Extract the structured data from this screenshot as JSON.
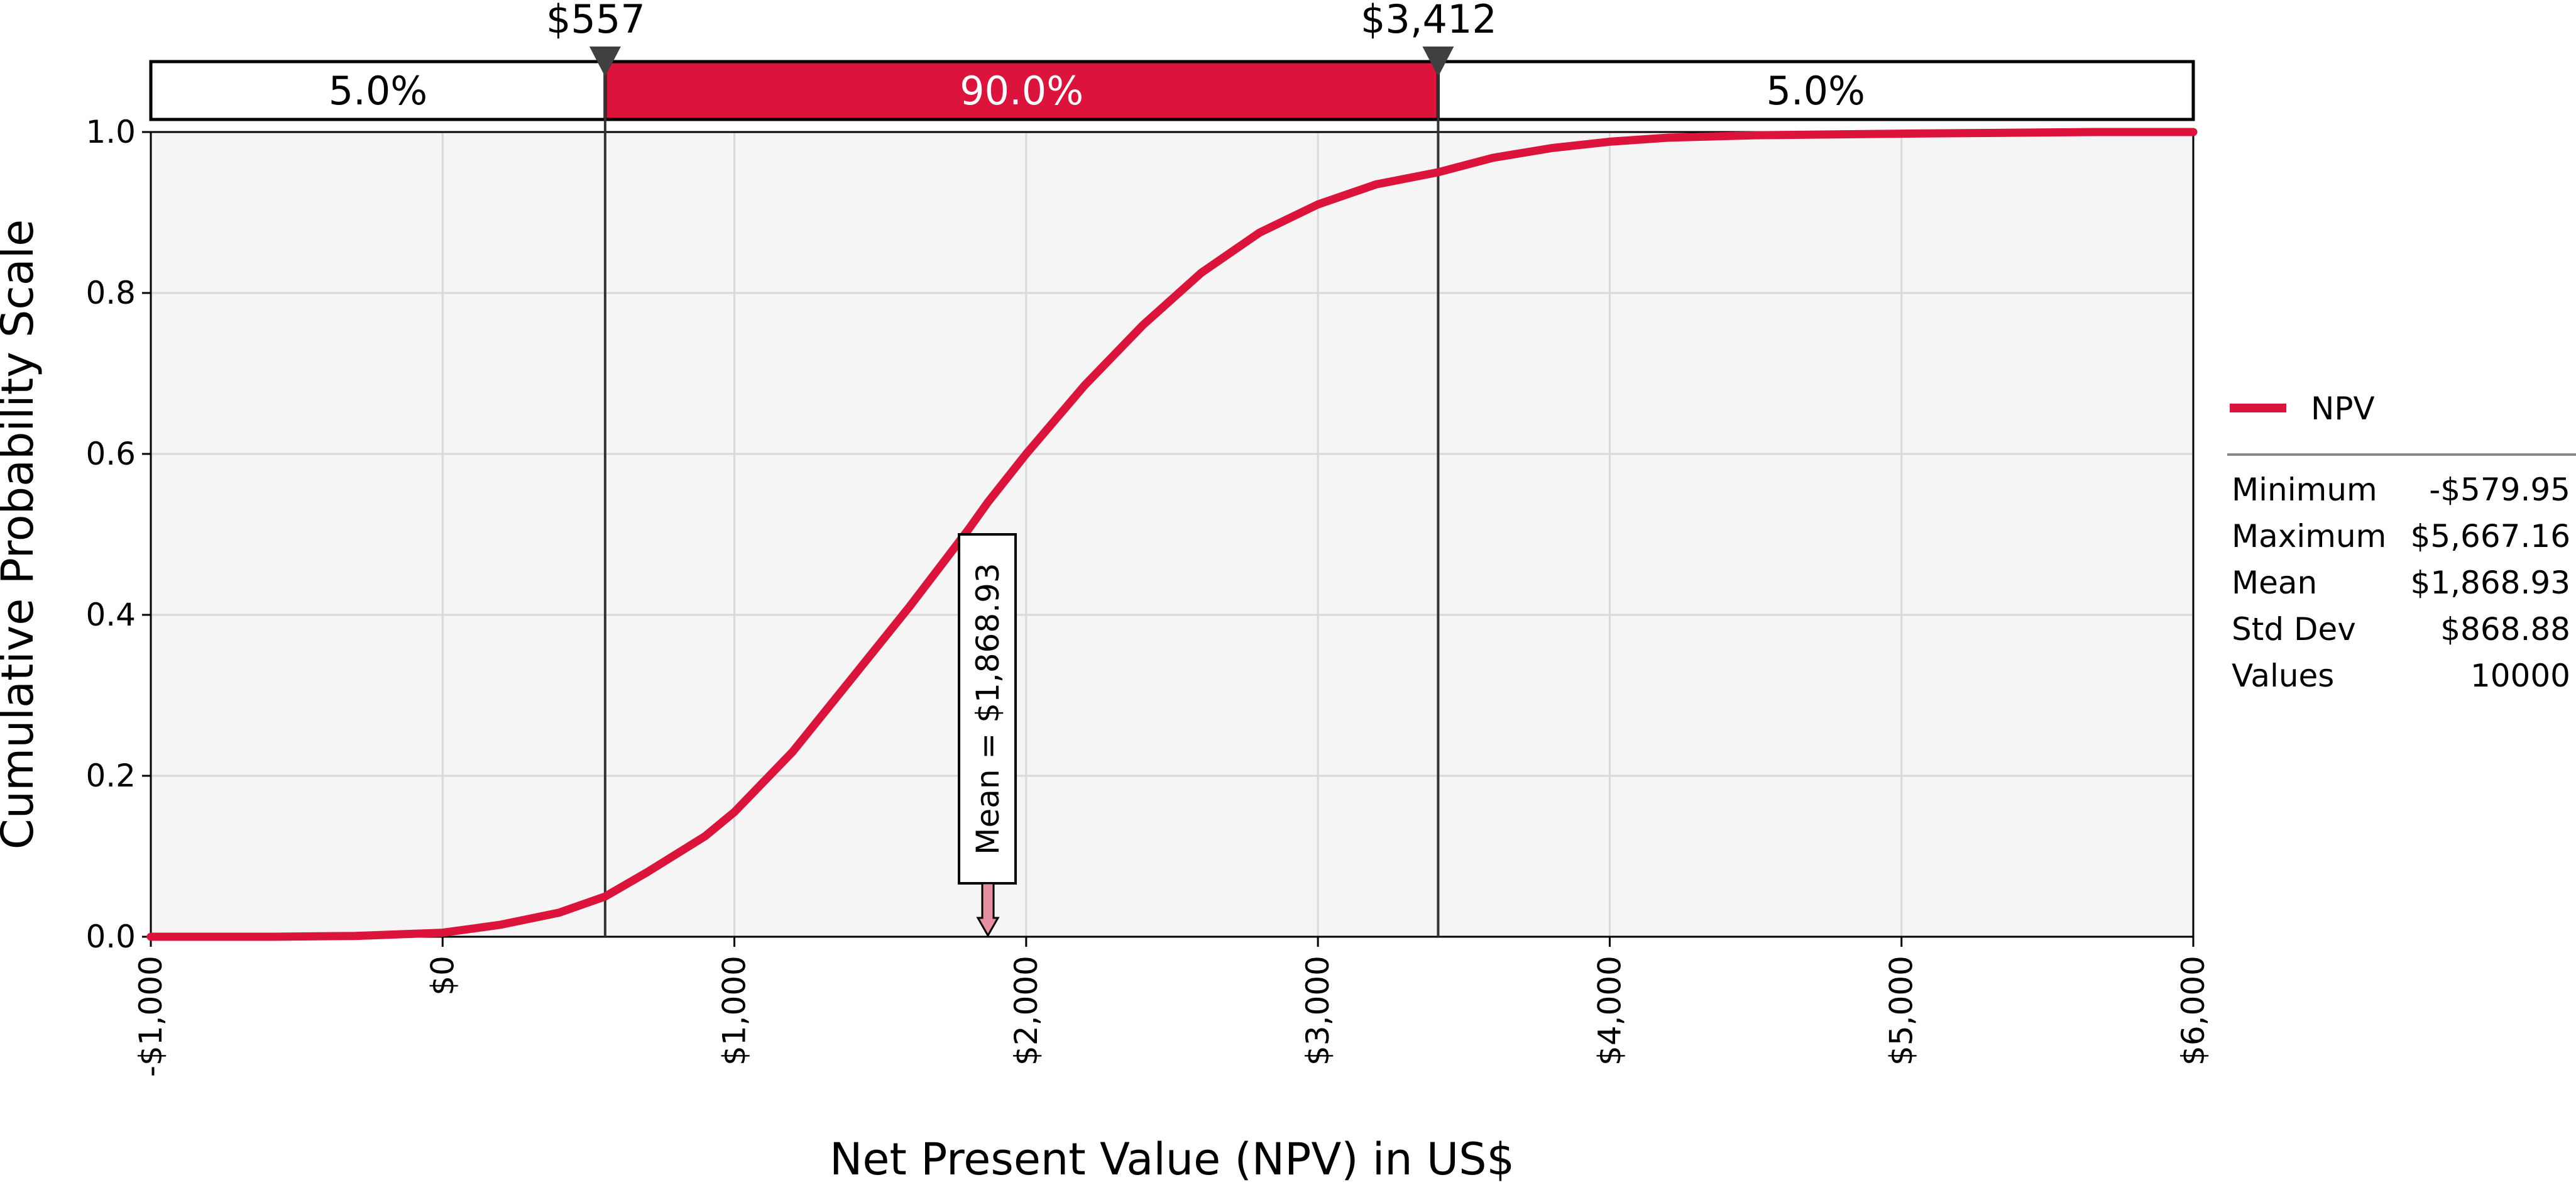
{
  "chart_data": {
    "type": "line",
    "chart_kind": "cumulative ascending",
    "title": "",
    "xlabel": "Net Present Value (NPV) in US$",
    "ylabel": "Cumulative Probability Scale",
    "xlim": [
      -1000,
      6000
    ],
    "ylim": [
      0,
      1
    ],
    "x_ticks": [
      -1000,
      0,
      1000,
      2000,
      3000,
      4000,
      5000,
      6000
    ],
    "x_tick_labels": [
      "-$1,000",
      "$0",
      "$1,000",
      "$2,000",
      "$3,000",
      "$4,000",
      "$5,000",
      "$6,000"
    ],
    "y_ticks": [
      0,
      0.2,
      0.4,
      0.6,
      0.8,
      1.0
    ],
    "y_tick_labels": [
      "0.0",
      "0.2",
      "0.4",
      "0.6",
      "0.8",
      "1.0"
    ],
    "grid": true,
    "series": [
      {
        "name": "NPV",
        "color": "#dc143c",
        "x": [
          -1000,
          -580,
          -300,
          0,
          200,
          400,
          557,
          700,
          900,
          1000,
          1200,
          1400,
          1600,
          1800,
          1869,
          2000,
          2200,
          2400,
          2600,
          2800,
          3000,
          3200,
          3412,
          3600,
          3800,
          4000,
          4200,
          4500,
          5000,
          5667,
          6000
        ],
        "y": [
          0.0,
          0.0,
          0.001,
          0.005,
          0.015,
          0.03,
          0.05,
          0.08,
          0.125,
          0.155,
          0.23,
          0.32,
          0.41,
          0.505,
          0.54,
          0.6,
          0.685,
          0.76,
          0.825,
          0.875,
          0.91,
          0.935,
          0.95,
          0.968,
          0.98,
          0.988,
          0.993,
          0.996,
          0.998,
          1.0,
          1.0
        ]
      }
    ],
    "delimiters": {
      "left_value": 557,
      "right_value": 3412,
      "left_label": "$557",
      "right_label": "$3,412",
      "left_pct": "5.0%",
      "middle_pct": "90.0%",
      "right_pct": "5.0%"
    },
    "mean_marker": {
      "value": 1868.93,
      "label": "Mean = $1,868.93"
    },
    "legend": {
      "placement": "right",
      "entries": [
        {
          "name": "NPV",
          "color": "#dc143c"
        }
      ]
    },
    "stats": [
      {
        "label": "Minimum",
        "value": "-$579.95"
      },
      {
        "label": "Maximum",
        "value": "$5,667.16"
      },
      {
        "label": "Mean",
        "value": "$1,868.93"
      },
      {
        "label": "Std Dev",
        "value": "$868.88"
      },
      {
        "label": "Values",
        "value": "10000"
      }
    ],
    "colors": {
      "series": "#dc143c",
      "plot_background": "#f5f5f5",
      "grid": "#d9d9d9",
      "band_middle": "#dc143c",
      "marker": "#404040",
      "mean_arrow": "#e58fa0"
    }
  }
}
